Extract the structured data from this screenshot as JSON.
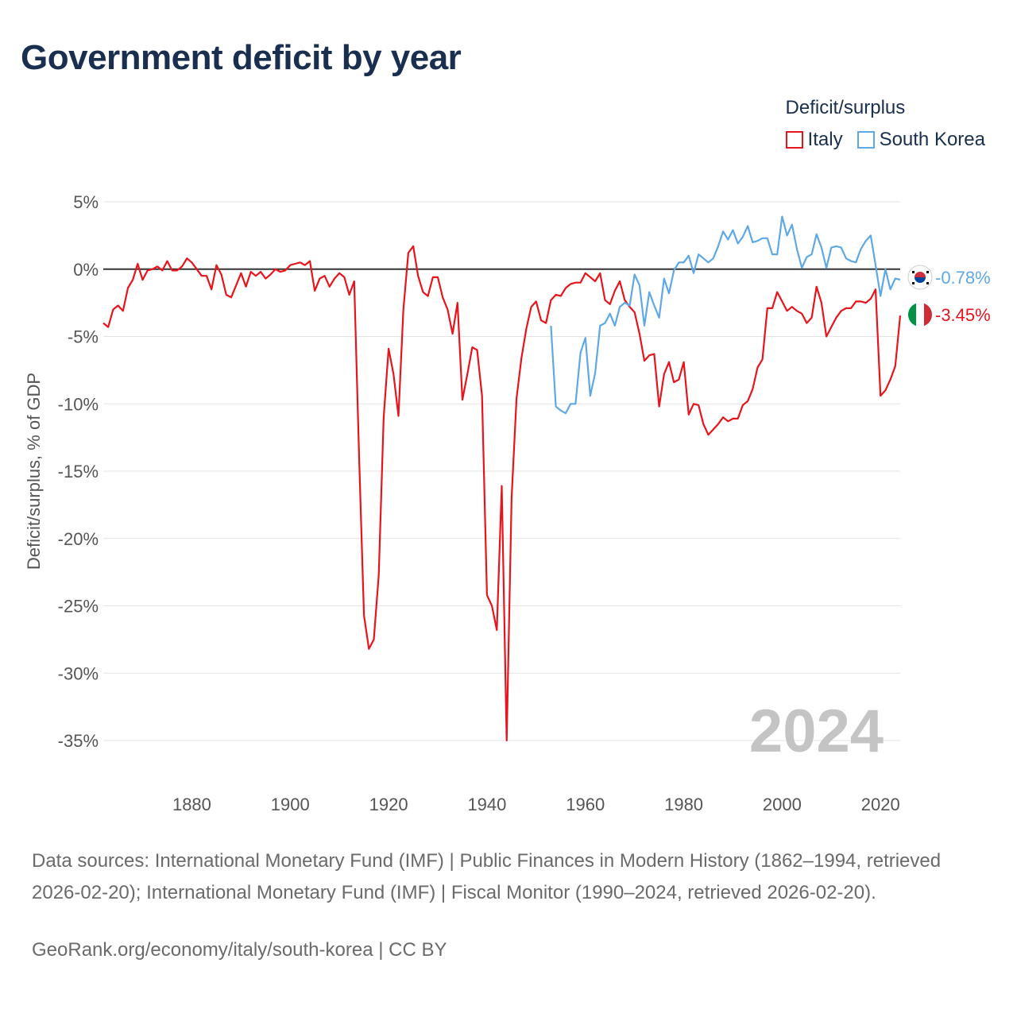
{
  "title": "Government deficit by year",
  "legend": {
    "title": "Deficit/surplus",
    "items": [
      {
        "label": "Italy",
        "color": "#e8141c"
      },
      {
        "label": "South Korea",
        "color": "#5fa8e6"
      }
    ]
  },
  "footer": {
    "sources": "Data sources: International Monetary Fund (IMF) | Public Finances in Modern History (1862–1994, retrieved 2026-02-20); International Monetary Fund (IMF) | Fiscal Monitor (1990–2024, retrieved 2026-02-20).",
    "credit": "GeoRank.org/economy/italy/south-korea | CC BY"
  },
  "chart_data": {
    "type": "line",
    "ylabel": "Deficit/surplus, % of GDP",
    "ylim": [
      -35,
      5
    ],
    "xlim": [
      1862,
      2024
    ],
    "y_ticks": [
      5,
      0,
      -5,
      -10,
      -15,
      -20,
      -25,
      -30,
      -35
    ],
    "y_tick_labels": [
      "5%",
      "0%",
      "-5%",
      "-10%",
      "-15%",
      "-20%",
      "-25%",
      "-30%",
      "-35%"
    ],
    "x_ticks": [
      1880,
      1900,
      1920,
      1940,
      1960,
      1980,
      2000,
      2020
    ],
    "x_tick_labels": [
      "1880",
      "1900",
      "1920",
      "1940",
      "1960",
      "1980",
      "2000",
      "2020"
    ],
    "year_watermark": "2024",
    "series": [
      {
        "name": "Italy",
        "color": "#e8141c",
        "end_label": "-3.45%",
        "x": [
          1862,
          1863,
          1864,
          1865,
          1866,
          1867,
          1868,
          1869,
          1870,
          1871,
          1872,
          1873,
          1874,
          1875,
          1876,
          1877,
          1878,
          1879,
          1880,
          1881,
          1882,
          1883,
          1884,
          1885,
          1886,
          1887,
          1888,
          1889,
          1890,
          1891,
          1892,
          1893,
          1894,
          1895,
          1896,
          1897,
          1898,
          1899,
          1900,
          1901,
          1902,
          1903,
          1904,
          1905,
          1906,
          1907,
          1908,
          1909,
          1910,
          1911,
          1912,
          1913,
          1914,
          1915,
          1916,
          1917,
          1918,
          1919,
          1920,
          1921,
          1922,
          1923,
          1924,
          1925,
          1926,
          1927,
          1928,
          1929,
          1930,
          1931,
          1932,
          1933,
          1934,
          1935,
          1936,
          1937,
          1938,
          1939,
          1940,
          1941,
          1942,
          1943,
          1944,
          1945,
          1946,
          1947,
          1948,
          1949,
          1950,
          1951,
          1952,
          1953,
          1954,
          1955,
          1956,
          1957,
          1958,
          1959,
          1960,
          1961,
          1962,
          1963,
          1964,
          1965,
          1966,
          1967,
          1968,
          1969,
          1970,
          1971,
          1972,
          1973,
          1974,
          1975,
          1976,
          1977,
          1978,
          1979,
          1980,
          1981,
          1982,
          1983,
          1984,
          1985,
          1986,
          1987,
          1988,
          1989,
          1990,
          1991,
          1992,
          1993,
          1994,
          1995,
          1996,
          1997,
          1998,
          1999,
          2000,
          2001,
          2002,
          2003,
          2004,
          2005,
          2006,
          2007,
          2008,
          2009,
          2010,
          2011,
          2012,
          2013,
          2014,
          2015,
          2016,
          2017,
          2018,
          2019,
          2020,
          2021,
          2022,
          2023,
          2024
        ],
        "values": [
          -4.0,
          -4.3,
          -3.0,
          -2.7,
          -3.1,
          -1.4,
          -0.8,
          0.4,
          -0.8,
          -0.1,
          0.0,
          0.2,
          -0.1,
          0.6,
          -0.1,
          -0.1,
          0.2,
          0.8,
          0.5,
          0.0,
          -0.5,
          -0.5,
          -1.5,
          0.3,
          -0.4,
          -1.9,
          -2.1,
          -1.2,
          -0.3,
          -1.3,
          -0.2,
          -0.5,
          -0.2,
          -0.7,
          -0.4,
          0.0,
          -0.2,
          -0.1,
          0.3,
          0.4,
          0.5,
          0.3,
          0.6,
          -1.6,
          -0.7,
          -0.5,
          -1.3,
          -0.7,
          -0.3,
          -0.6,
          -1.9,
          -0.9,
          -14.0,
          -25.7,
          -28.2,
          -27.5,
          -22.7,
          -11.0,
          -5.9,
          -7.8,
          -10.9,
          -3.0,
          1.2,
          1.7,
          -0.5,
          -1.7,
          -2.0,
          -0.6,
          -0.6,
          -2.1,
          -3.0,
          -4.8,
          -2.5,
          -9.7,
          -7.8,
          -5.8,
          -6.0,
          -9.4,
          -24.2,
          -25.0,
          -26.8,
          -16.1,
          -35.0,
          -17.0,
          -9.6,
          -6.6,
          -4.4,
          -2.8,
          -2.4,
          -3.8,
          -4.0,
          -2.3,
          -1.9,
          -2.0,
          -1.4,
          -1.1,
          -1.0,
          -1.0,
          -0.3,
          -0.6,
          -0.9,
          -0.3,
          -2.3,
          -2.6,
          -1.6,
          -0.9,
          -2.3,
          -2.8,
          -3.2,
          -4.8,
          -6.8,
          -6.4,
          -6.3,
          -10.2,
          -7.8,
          -6.9,
          -8.4,
          -8.2,
          -6.9,
          -10.8,
          -10.0,
          -10.1,
          -11.5,
          -12.3,
          -11.9,
          -11.5,
          -11.0,
          -11.3,
          -11.1,
          -11.1,
          -10.1,
          -9.8,
          -8.9,
          -7.3,
          -6.7,
          -2.9,
          -2.9,
          -1.7,
          -2.4,
          -3.1,
          -2.8,
          -3.1,
          -3.3,
          -4.0,
          -3.6,
          -1.3,
          -2.5,
          -5.0,
          -4.3,
          -3.6,
          -3.1,
          -2.9,
          -2.9,
          -2.4,
          -2.4,
          -2.5,
          -2.2,
          -1.5,
          -9.4,
          -9.0,
          -8.2,
          -7.2,
          -3.45
        ]
      },
      {
        "name": "South Korea",
        "color": "#5fa8e6",
        "end_label": "-0.78%",
        "x": [
          1953,
          1954,
          1955,
          1956,
          1957,
          1958,
          1959,
          1960,
          1961,
          1962,
          1963,
          1964,
          1965,
          1966,
          1967,
          1968,
          1969,
          1970,
          1971,
          1972,
          1973,
          1974,
          1975,
          1976,
          1977,
          1978,
          1979,
          1980,
          1981,
          1982,
          1983,
          1984,
          1985,
          1986,
          1987,
          1988,
          1989,
          1990,
          1991,
          1992,
          1993,
          1994,
          1995,
          1996,
          1997,
          1998,
          1999,
          2000,
          2001,
          2002,
          2003,
          2004,
          2005,
          2006,
          2007,
          2008,
          2009,
          2010,
          2011,
          2012,
          2013,
          2014,
          2015,
          2016,
          2017,
          2018,
          2019,
          2020,
          2021,
          2022,
          2023,
          2024
        ],
        "values": [
          -4.2,
          -10.2,
          -10.5,
          -10.7,
          -10.0,
          -10.0,
          -6.2,
          -5.1,
          -9.4,
          -7.7,
          -4.2,
          -4.0,
          -3.3,
          -4.2,
          -2.8,
          -2.5,
          -2.7,
          -0.4,
          -1.2,
          -4.2,
          -1.7,
          -2.7,
          -3.6,
          -0.7,
          -1.8,
          -0.1,
          0.5,
          0.5,
          1.0,
          -0.3,
          1.1,
          0.8,
          0.5,
          0.8,
          1.7,
          2.8,
          2.2,
          2.9,
          1.9,
          2.4,
          3.2,
          2.0,
          2.1,
          2.3,
          2.3,
          1.1,
          1.1,
          3.9,
          2.5,
          3.3,
          1.5,
          0.1,
          0.9,
          1.1,
          2.6,
          1.6,
          0.1,
          1.6,
          1.7,
          1.6,
          0.8,
          0.6,
          0.5,
          1.5,
          2.1,
          2.5,
          0.3,
          -2.0,
          0.0,
          -1.5,
          -0.7,
          -0.78
        ]
      }
    ]
  }
}
